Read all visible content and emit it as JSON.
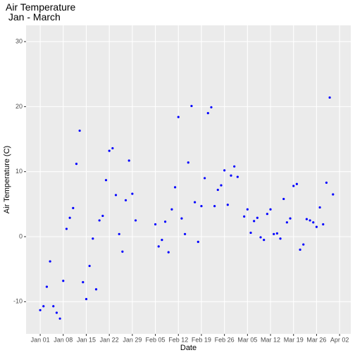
{
  "chart_data": {
    "type": "scatter",
    "title": "Air Temperature\n Jan - March",
    "x_label": "Date",
    "y_label": "Air Temperature (C)",
    "color": "#0000ff",
    "grid": true,
    "xlim": [
      -4.3,
      94.4
    ],
    "ylim": [
      -14.95,
      32.5
    ],
    "xticks": [
      {
        "value": 0,
        "label": "Jan 01"
      },
      {
        "value": 7,
        "label": "Jan 08"
      },
      {
        "value": 14,
        "label": "Jan 15"
      },
      {
        "value": 21,
        "label": "Jan 22"
      },
      {
        "value": 28,
        "label": "Jan 29"
      },
      {
        "value": 35,
        "label": "Feb 05"
      },
      {
        "value": 42,
        "label": "Feb 12"
      },
      {
        "value": 49,
        "label": "Feb 19"
      },
      {
        "value": 56,
        "label": "Feb 26"
      },
      {
        "value": 63,
        "label": "Mar 05"
      },
      {
        "value": 70,
        "label": "Mar 12"
      },
      {
        "value": 77,
        "label": "Mar 19"
      },
      {
        "value": 84,
        "label": "Mar 26"
      },
      {
        "value": 91,
        "label": "Apr 02"
      }
    ],
    "yticks": [
      -10,
      0,
      10,
      20,
      30
    ],
    "x": [
      0,
      1,
      2,
      3,
      4,
      5,
      6,
      7,
      8,
      9,
      10,
      11,
      12,
      13,
      14,
      15,
      16,
      17,
      18,
      19,
      20,
      21,
      22,
      23,
      24,
      25,
      26,
      27,
      28,
      29,
      35,
      36,
      37,
      38,
      39,
      40,
      41,
      42,
      43,
      44,
      45,
      46,
      47,
      48,
      49,
      50,
      51,
      52,
      53,
      54,
      55,
      56,
      57,
      58,
      59,
      60,
      62,
      63,
      64,
      65,
      66,
      67,
      68,
      69,
      70,
      71,
      72,
      73,
      74,
      75,
      76,
      77,
      78,
      79,
      80,
      81,
      82,
      83,
      84,
      85,
      86,
      87,
      88,
      89
    ],
    "values": [
      -11.3,
      -10.7,
      -7.7,
      -3.8,
      -10.7,
      -11.7,
      -12.6,
      -6.8,
      1.2,
      2.9,
      4.4,
      11.2,
      16.3,
      -7.0,
      -9.6,
      -4.5,
      -0.3,
      -8.1,
      2.5,
      3.2,
      8.7,
      13.2,
      13.6,
      6.4,
      0.4,
      -2.3,
      5.6,
      11.7,
      6.6,
      2.5,
      1.9,
      -1.5,
      -0.5,
      2.3,
      -2.4,
      4.2,
      7.6,
      18.4,
      2.8,
      0.4,
      11.4,
      20.1,
      5.3,
      -0.8,
      4.7,
      9.0,
      19.0,
      19.9,
      4.7,
      7.2,
      7.9,
      10.2,
      4.9,
      9.4,
      10.8,
      9.2,
      3.1,
      4.2,
      0.6,
      2.4,
      2.9,
      -0.1,
      -0.5,
      3.5,
      4.2,
      0.4,
      0.5,
      -0.3,
      5.8,
      2.2,
      2.8,
      7.8,
      8.1,
      -2.0,
      -1.2,
      2.7,
      2.5,
      2.2,
      1.5,
      4.5,
      1.9,
      8.3,
      21.4,
      6.5
    ]
  }
}
